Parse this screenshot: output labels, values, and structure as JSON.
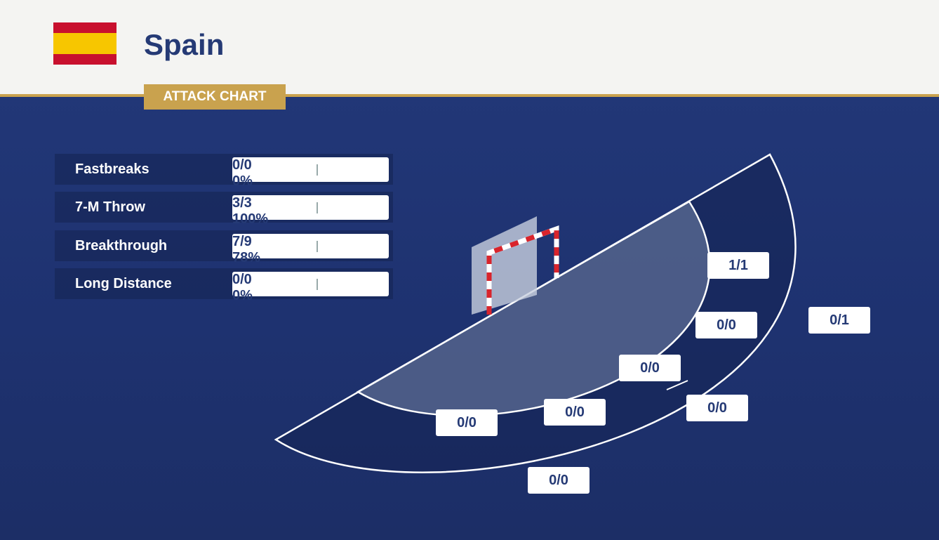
{
  "header": {
    "team": "Spain",
    "badge": "ATTACK CHART"
  },
  "stats": {
    "rows": [
      {
        "label": "Fastbreaks",
        "made": "0/0",
        "pct": "0%"
      },
      {
        "label": "7-M Throw",
        "made": "3/3",
        "pct": "100%"
      },
      {
        "label": "Breakthrough",
        "made": "7/9",
        "pct": "78%"
      },
      {
        "label": "Long Distance",
        "made": "0/0",
        "pct": "0%"
      }
    ]
  },
  "zones": [
    "1/1",
    "0/0",
    "0/0",
    "0/0",
    "0/0",
    "0/1",
    "0/0",
    "0/0"
  ]
}
